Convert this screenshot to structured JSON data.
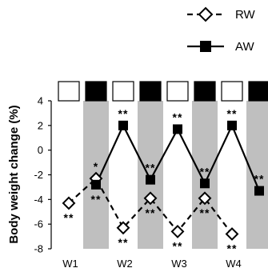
{
  "chart_data": {
    "type": "line",
    "title": "",
    "xlabel": "",
    "ylabel": "Body weight change (%)",
    "ylim": [
      -8,
      4
    ],
    "yticks": [
      4,
      2,
      0,
      -2,
      -4,
      -6,
      -8
    ],
    "week_labels": [
      "W1",
      "W2",
      "W3",
      "W4"
    ],
    "legend": {
      "placement": "top-right",
      "entries": [
        "RW",
        "AW"
      ]
    },
    "condition_boxes": [
      "RW",
      "AW",
      "RW",
      "AW",
      "RW",
      "AW",
      "RW",
      "AW"
    ],
    "shaded_periods": [
      "AW",
      "AW",
      "AW",
      "AW"
    ],
    "x": [
      1,
      2,
      3,
      4,
      5,
      6,
      7,
      8,
      9
    ],
    "series": [
      {
        "name": "RW",
        "style": "dashed-open-diamond",
        "color": "#000000",
        "points": [
          {
            "x": 1,
            "y": -4.3,
            "sig": "**",
            "sig_pos": "below"
          },
          {
            "x": 2,
            "y": -2.3,
            "sig": "*",
            "sig_pos": "above"
          },
          {
            "x": 3,
            "y": -6.3,
            "sig": "**",
            "sig_pos": "below"
          },
          {
            "x": 4,
            "y": -3.9,
            "sig": "**",
            "sig_pos": "below"
          },
          {
            "x": 5,
            "y": -6.6,
            "sig": "**",
            "sig_pos": "below"
          },
          {
            "x": 6,
            "y": -3.9,
            "sig": "**",
            "sig_pos": "below"
          },
          {
            "x": 7,
            "y": -6.8,
            "sig": "**",
            "sig_pos": "below"
          }
        ]
      },
      {
        "name": "AW",
        "style": "solid-filled-square",
        "color": "#000000",
        "points": [
          {
            "x": 2,
            "y": -2.8,
            "sig": "**",
            "sig_pos": "below"
          },
          {
            "x": 3,
            "y": 2.0,
            "sig": "**",
            "sig_pos": "above"
          },
          {
            "x": 4,
            "y": -2.4,
            "sig": "**",
            "sig_pos": "above"
          },
          {
            "x": 5,
            "y": 1.7,
            "sig": "**",
            "sig_pos": "above"
          },
          {
            "x": 6,
            "y": -2.7,
            "sig": "**",
            "sig_pos": "above"
          },
          {
            "x": 7,
            "y": 2.0,
            "sig": "**",
            "sig_pos": "above"
          },
          {
            "x": 8,
            "y": -3.3,
            "sig": "**",
            "sig_pos": "above"
          }
        ]
      }
    ],
    "colors": {
      "shade": "#bfbfbf",
      "line": "#000000",
      "box_fill_AW": "#000000",
      "box_fill_RW": "#ffffff"
    }
  }
}
